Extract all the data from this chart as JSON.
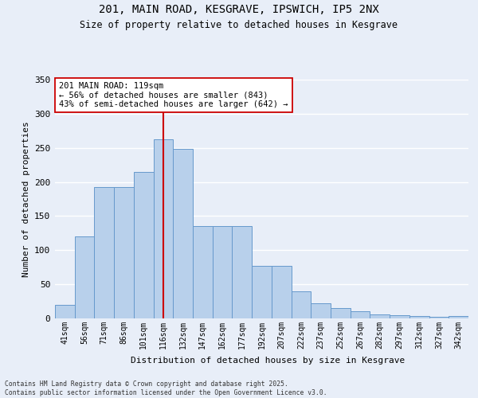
{
  "title1": "201, MAIN ROAD, KESGRAVE, IPSWICH, IP5 2NX",
  "title2": "Size of property relative to detached houses in Kesgrave",
  "xlabel": "Distribution of detached houses by size in Kesgrave",
  "ylabel": "Number of detached properties",
  "categories": [
    "41sqm",
    "56sqm",
    "71sqm",
    "86sqm",
    "101sqm",
    "116sqm",
    "132sqm",
    "147sqm",
    "162sqm",
    "177sqm",
    "192sqm",
    "207sqm",
    "222sqm",
    "237sqm",
    "252sqm",
    "267sqm",
    "282sqm",
    "297sqm",
    "312sqm",
    "327sqm",
    "342sqm"
  ],
  "values": [
    20,
    120,
    193,
    193,
    215,
    263,
    248,
    135,
    135,
    135,
    77,
    77,
    40,
    22,
    15,
    10,
    6,
    5,
    3,
    2,
    4
  ],
  "bar_color": "#b8d0eb",
  "bar_edge_color": "#6699cc",
  "vline_index": 5,
  "vline_color": "#cc0000",
  "annotation_text": "201 MAIN ROAD: 119sqm\n← 56% of detached houses are smaller (843)\n43% of semi-detached houses are larger (642) →",
  "ylim": [
    0,
    350
  ],
  "yticks": [
    0,
    50,
    100,
    150,
    200,
    250,
    300,
    350
  ],
  "footer": "Contains HM Land Registry data © Crown copyright and database right 2025.\nContains public sector information licensed under the Open Government Licence v3.0.",
  "bg_color": "#e8eef8",
  "grid_color": "#ffffff"
}
